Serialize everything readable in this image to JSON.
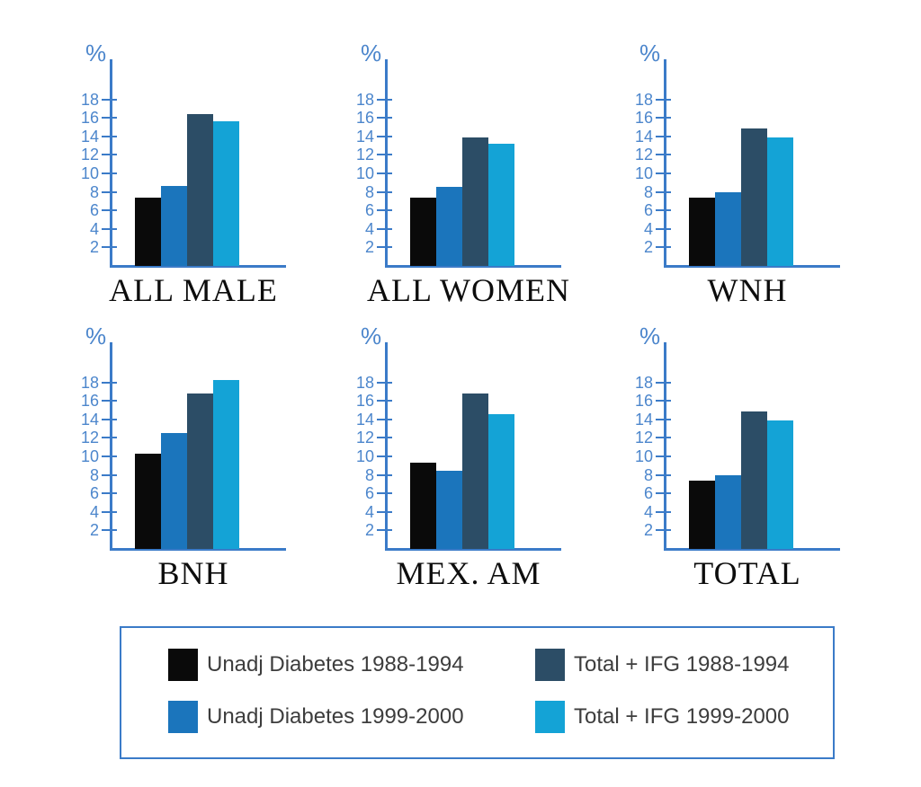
{
  "figure": {
    "background": "#ffffff"
  },
  "palette": {
    "axis": "#3B7BC8",
    "tick_label": "#4C86CC",
    "title_text": "#0d0d0d",
    "legend_border": "#3B7BC8",
    "legend_text": "#3d3d3d"
  },
  "chart_data": {
    "type": "bar",
    "title": "",
    "ylabel": "%",
    "xlabel": "",
    "ylim": [
      0,
      22.5
    ],
    "yticks": [
      2,
      4,
      6,
      8,
      10,
      12,
      14,
      16,
      18
    ],
    "grid": false,
    "layout": "2 rows x 3 columns of small multiples, shared legend at bottom",
    "legend_position": "bottom",
    "series_names": [
      "Unadj Diabetes 1988-1994",
      "Unadj Diabetes 1999-2000",
      "Total + IFG 1988-1994",
      "Total + IFG 1999-2000"
    ],
    "series_colors": [
      "#0A0A0A",
      "#1B75BC",
      "#2C4D66",
      "#14A3D6"
    ],
    "charts": [
      {
        "title": "ALL MALE",
        "values": [
          7.4,
          8.6,
          16.4,
          15.6
        ]
      },
      {
        "title": "ALL WOMEN",
        "values": [
          7.4,
          8.5,
          13.9,
          13.2
        ]
      },
      {
        "title": "WNH",
        "values": [
          7.4,
          8.0,
          14.9,
          13.9
        ]
      },
      {
        "title": "BNH",
        "values": [
          10.3,
          12.5,
          16.8,
          18.3
        ]
      },
      {
        "title": "MEX. AM",
        "values": [
          9.3,
          8.4,
          16.8,
          14.6
        ]
      },
      {
        "title": "TOTAL",
        "values": [
          7.4,
          8.0,
          14.9,
          13.9
        ]
      }
    ]
  },
  "legend": {
    "items": [
      {
        "label": "Unadj Diabetes 1988-1994",
        "color": "#0A0A0A"
      },
      {
        "label": "Unadj Diabetes 1999-2000",
        "color": "#1B75BC"
      },
      {
        "label": "Total + IFG 1988-1994",
        "color": "#2C4D66"
      },
      {
        "label": "Total + IFG 1999-2000",
        "color": "#14A3D6"
      }
    ]
  }
}
